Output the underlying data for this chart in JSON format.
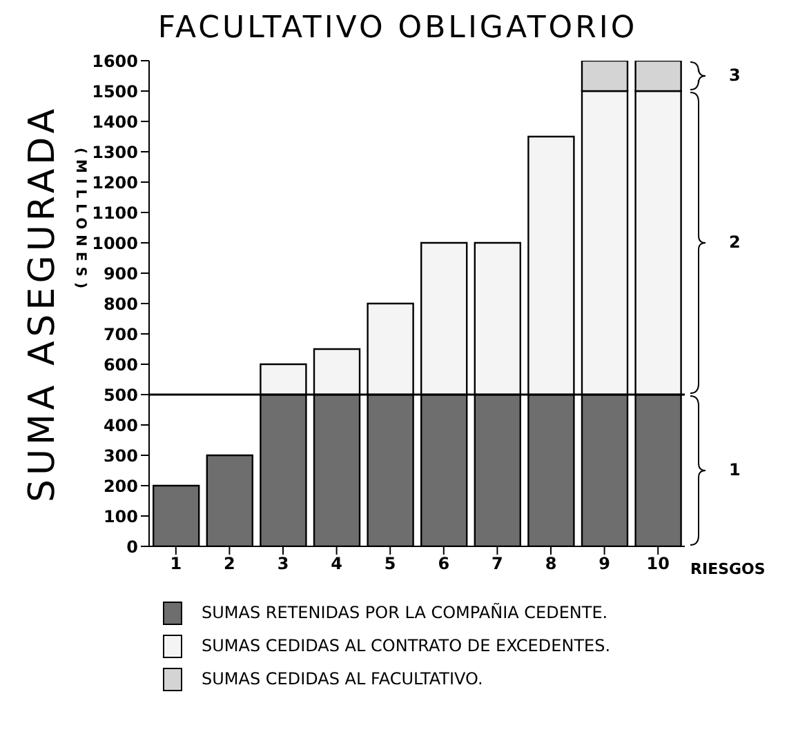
{
  "chart_data": {
    "type": "bar",
    "title": "FACULTATIVO OBLIGATORIO",
    "ylabel": "SUMA ASEGURADA",
    "xlabel": "RIESGOS",
    "annotations": [
      "(MILLONES)",
      "1",
      "2",
      "3"
    ],
    "categories": [
      "1",
      "2",
      "3",
      "4",
      "5",
      "6",
      "7",
      "8",
      "9",
      "10"
    ],
    "stacked": true,
    "series": [
      {
        "name": "SUMAS RETENIDAS POR LA COMPAÑIA CEDENTE.",
        "color": "#6e6e6e",
        "values": [
          200,
          300,
          500,
          500,
          500,
          500,
          500,
          500,
          500,
          500
        ]
      },
      {
        "name": "SUMAS CEDIDAS AL CONTRATO DE EXCEDENTES.",
        "color": "#f4f4f4",
        "values": [
          null,
          null,
          100,
          150,
          300,
          500,
          500,
          850,
          1000,
          1000
        ]
      },
      {
        "name": "SUMAS CEDIDAS AL FACULTATIVO.",
        "color": "#d4d4d4",
        "values": [
          null,
          null,
          null,
          null,
          null,
          null,
          null,
          null,
          100,
          100
        ]
      }
    ],
    "ylim": [
      0,
      1600
    ],
    "yticks": [
      0,
      100,
      200,
      300,
      400,
      500,
      600,
      700,
      800,
      900,
      1000,
      1100,
      1200,
      1300,
      1400,
      1500,
      1600
    ],
    "ref_lines": [
      {
        "axis": "y",
        "value": 500
      }
    ],
    "legend": "bottom"
  }
}
